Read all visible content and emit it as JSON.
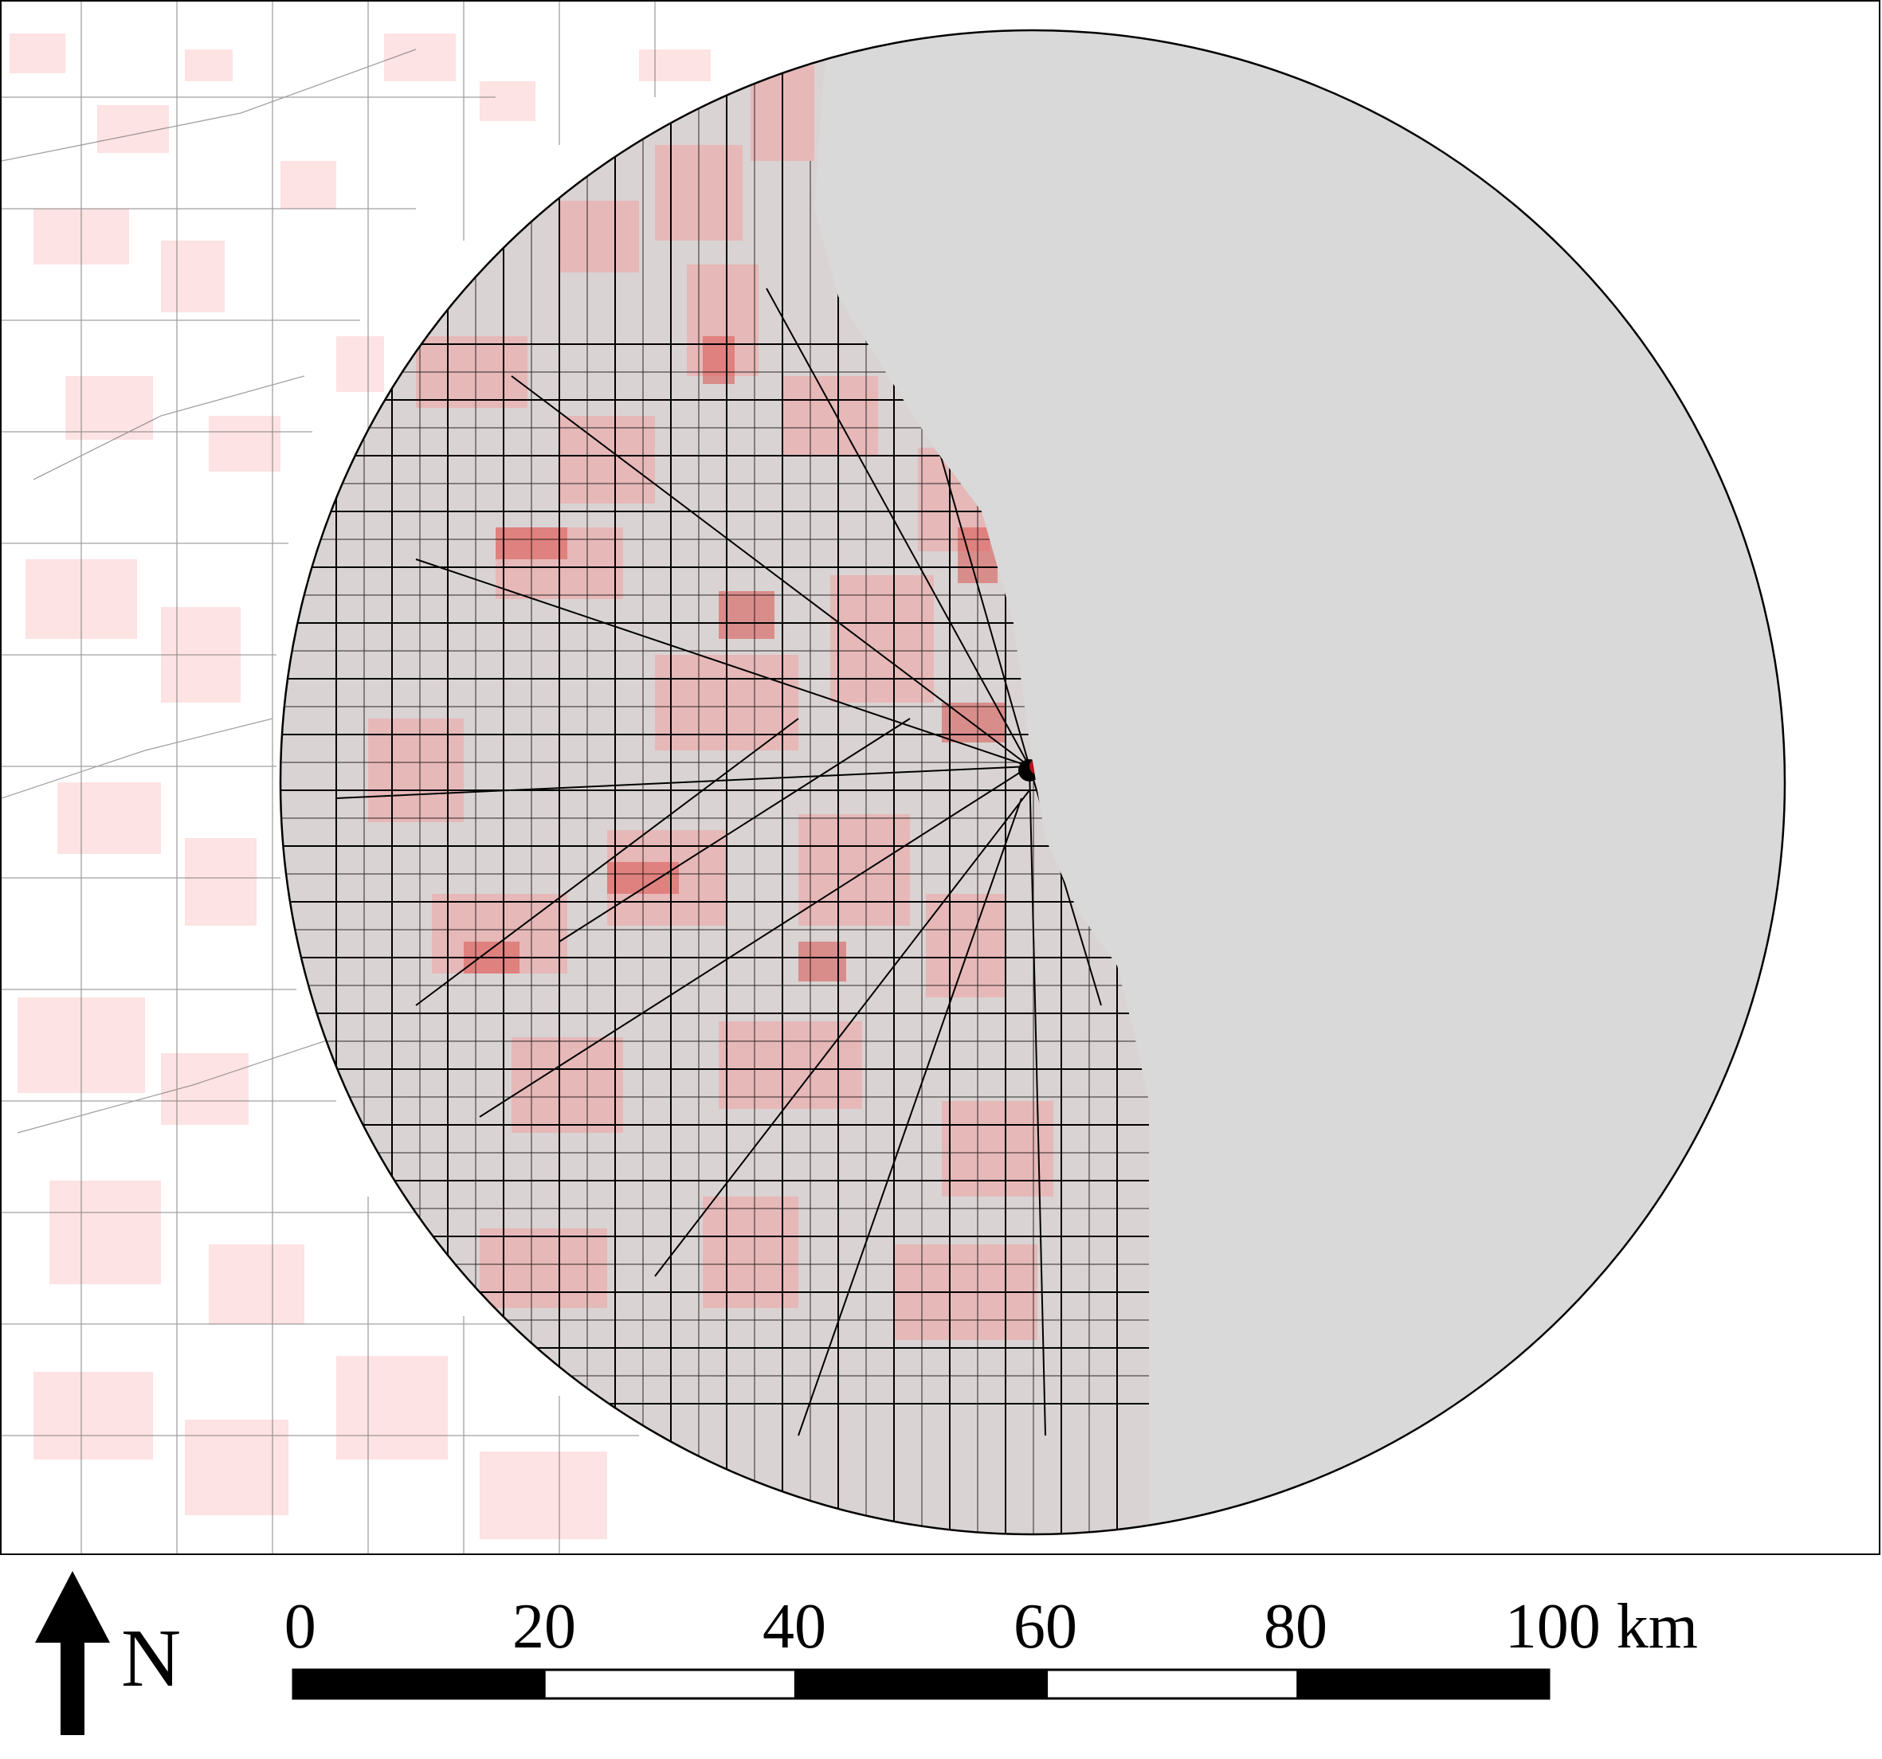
{
  "map": {
    "study_area": "circle",
    "colors": {
      "land_background": "#ffffff",
      "lake_fill": "#d9d9d9",
      "circle_outline": "#000000",
      "road_color": "#000000",
      "density_light": "#fde0e0",
      "density_mid": "#f3a8a8",
      "density_high": "#d9534f",
      "density_peak": "#e8141e"
    }
  },
  "north_arrow": {
    "icon": "north-arrow-icon",
    "label": "N"
  },
  "scale_bar": {
    "ticks": [
      "0",
      "20",
      "40",
      "60",
      "80",
      "100 km"
    ],
    "segment_colors": [
      "#000000",
      "#ffffff",
      "#000000",
      "#ffffff",
      "#000000"
    ]
  }
}
